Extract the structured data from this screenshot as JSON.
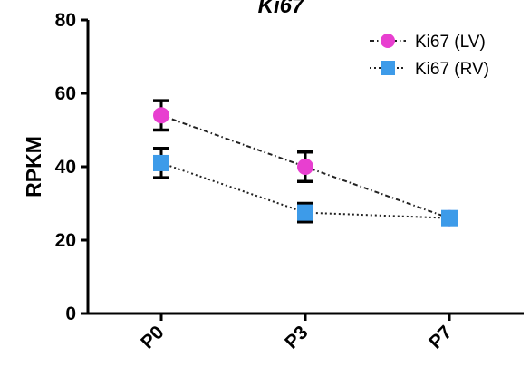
{
  "chart_data": {
    "type": "line",
    "title": "Ki67",
    "ylabel": "RPKM",
    "xlabel": "",
    "categories": [
      "P0",
      "P3",
      "P7"
    ],
    "ylim": [
      0,
      80
    ],
    "yticks": [
      0,
      20,
      40,
      60,
      80
    ],
    "legend_position": "top-right",
    "grid": false,
    "series": [
      {
        "name": "Ki67 (LV)",
        "values": [
          54,
          40,
          26
        ],
        "errors": [
          4,
          4,
          0.5
        ],
        "color": "#e83fd0",
        "marker": "circle",
        "line_style": "dash-dot"
      },
      {
        "name": "Ki67 (RV)",
        "values": [
          41,
          27.5,
          26
        ],
        "errors": [
          4,
          2.5,
          0.5
        ],
        "color": "#3d9be9",
        "marker": "square",
        "line_style": "dotted"
      }
    ]
  }
}
